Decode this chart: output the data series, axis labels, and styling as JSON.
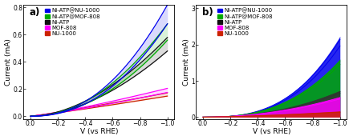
{
  "panel_a": {
    "label": "a)",
    "xlabel": "V (vs RHE)",
    "ylabel": "Current (mA)",
    "xlim": [
      0.05,
      -1.05
    ],
    "ylim": [
      -0.02,
      0.82
    ],
    "yticks": [
      0.0,
      0.2,
      0.4,
      0.6,
      0.8
    ],
    "xticks": [
      0.0,
      -0.2,
      -0.4,
      -0.6,
      -0.8,
      -1.0
    ],
    "curves": [
      {
        "name": "Ni-ATP@NU-1000",
        "color": "#0000ee",
        "a": 0.75,
        "b": 2.2,
        "sep": 0.07
      },
      {
        "name": "Ni-ATP@MOF-808",
        "color": "#00aa00",
        "a": 0.62,
        "b": 2.0,
        "sep": 0.06
      },
      {
        "name": "Ni-ATP",
        "color": "#111111",
        "a": 0.53,
        "b": 1.8,
        "sep": 0.05
      },
      {
        "name": "MOF-808",
        "color": "#ff00ff",
        "a": 0.19,
        "b": 1.2,
        "sep": 0.015
      },
      {
        "name": "NU-1000",
        "color": "#cc2200",
        "a": 0.16,
        "b": 1.1,
        "sep": 0.012
      }
    ]
  },
  "panel_b": {
    "label": "b)",
    "xlabel": "V (vs RHE)",
    "ylabel": "Current (mA)",
    "xlim": [
      0.05,
      -1.05
    ],
    "ylim": [
      -0.05,
      3.1
    ],
    "yticks": [
      0,
      1,
      2,
      3
    ],
    "xticks": [
      0.0,
      -0.2,
      -0.4,
      -0.6,
      -0.8,
      -1.0
    ],
    "curves": [
      {
        "name": "Ni-ATP@NU-1000",
        "color": "#0000ee",
        "a": 2.05,
        "b": 2.8,
        "sep": 0.18
      },
      {
        "name": "Ni-ATP@MOF-808",
        "color": "#00aa00",
        "a": 1.5,
        "b": 2.6,
        "sep": 0.1
      },
      {
        "name": "Ni-ATP",
        "color": "#333333",
        "a": 0.68,
        "b": 2.2,
        "sep": 0.05
      },
      {
        "name": "MOF-808",
        "color": "#ff00ff",
        "a": 0.52,
        "b": 2.0,
        "sep": 0.04
      },
      {
        "name": "NU-1000",
        "color": "#cc2200",
        "a": 0.14,
        "b": 1.5,
        "sep": 0.01
      }
    ]
  },
  "legend_labels": [
    "Ni-ATP@NU-1000",
    "Ni-ATP@MOF-808",
    "Ni-ATP",
    "MOF-808",
    "NU-1000"
  ],
  "legend_colors": [
    "#0000ee",
    "#00aa00",
    "#111111",
    "#ff00ff",
    "#cc2200"
  ],
  "background_color": "#ffffff",
  "fontsize_tick": 5.5,
  "fontsize_label": 6.5,
  "fontsize_legend": 5.0,
  "fontsize_panel": 8.5
}
